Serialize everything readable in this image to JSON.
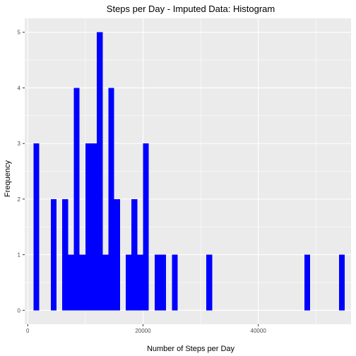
{
  "chart_data": {
    "type": "bar",
    "title": "Steps per Day - Imputed Data: Histogram",
    "xlabel": "Number of Steps per Day",
    "ylabel": "Frequency",
    "xlim": [
      -525,
      56100
    ],
    "ylim": [
      -0.25,
      5.25
    ],
    "binwidth": 1000,
    "x_ticks": [
      {
        "value": 0,
        "label": "0"
      },
      {
        "value": 20000,
        "label": "20000"
      },
      {
        "value": 40000,
        "label": "40000"
      }
    ],
    "y_ticks": [
      {
        "value": 0,
        "label": "0"
      },
      {
        "value": 1,
        "label": "1"
      },
      {
        "value": 2,
        "label": "2"
      },
      {
        "value": 3,
        "label": "3"
      },
      {
        "value": 4,
        "label": "4"
      },
      {
        "value": 5,
        "label": "5"
      }
    ],
    "grid": true,
    "bar_color": "#0000FF",
    "panel_background": "#EBEBEB",
    "gridline_color": "#FFFFFF",
    "bins": [
      {
        "x": 1500,
        "count": 3
      },
      {
        "x": 4500,
        "count": 2
      },
      {
        "x": 6500,
        "count": 2
      },
      {
        "x": 7500,
        "count": 1
      },
      {
        "x": 8500,
        "count": 4
      },
      {
        "x": 9500,
        "count": 1
      },
      {
        "x": 10500,
        "count": 3
      },
      {
        "x": 11500,
        "count": 3
      },
      {
        "x": 12500,
        "count": 5
      },
      {
        "x": 13500,
        "count": 1
      },
      {
        "x": 14500,
        "count": 4
      },
      {
        "x": 15500,
        "count": 2
      },
      {
        "x": 17500,
        "count": 1
      },
      {
        "x": 18500,
        "count": 2
      },
      {
        "x": 19500,
        "count": 1
      },
      {
        "x": 20500,
        "count": 3
      },
      {
        "x": 22500,
        "count": 1
      },
      {
        "x": 23500,
        "count": 1
      },
      {
        "x": 25500,
        "count": 1
      },
      {
        "x": 31500,
        "count": 1
      },
      {
        "x": 48500,
        "count": 1
      },
      {
        "x": 54500,
        "count": 1
      }
    ]
  }
}
